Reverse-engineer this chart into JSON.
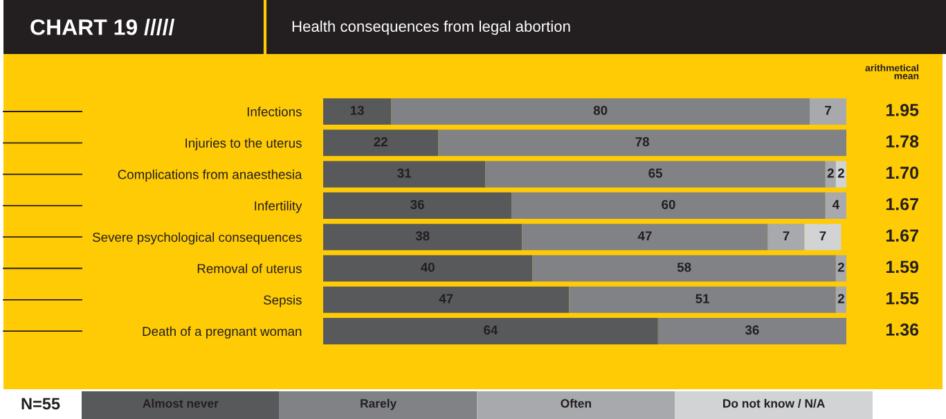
{
  "chart_data": {
    "type": "bar",
    "orientation": "horizontal",
    "stacked": true,
    "title": "CHART 19 /////",
    "subtitle": "Health consequences from legal abortion",
    "categories": [
      "Infections",
      "Injuries to the uterus",
      "Complications from anaesthesia",
      "Infertility",
      "Severe psychological consequences",
      "Removal of uterus",
      "Sepsis",
      "Death of a pregnant woman"
    ],
    "series": [
      {
        "name": "Almost never",
        "color": "#58595b",
        "values": [
          13,
          22,
          31,
          36,
          38,
          40,
          47,
          64
        ]
      },
      {
        "name": "Rarely",
        "color": "#808285",
        "values": [
          80,
          78,
          65,
          60,
          47,
          58,
          51,
          36
        ]
      },
      {
        "name": "Often",
        "color": "#a7a9ac",
        "values": [
          7,
          null,
          2,
          4,
          7,
          2,
          2,
          null
        ]
      },
      {
        "name": "Do not know / N/A",
        "color": "#d1d3d4",
        "values": [
          null,
          null,
          2,
          null,
          7,
          null,
          null,
          null
        ]
      }
    ],
    "xlim": [
      0,
      100
    ],
    "data_labels": true,
    "legend": "bottom",
    "tick_labels": "y",
    "annotations": [
      "arithmetical\nmean",
      "N=55",
      "1.95",
      "1.78",
      "1.70",
      "1.67",
      "1.67",
      "1.59",
      "1.55",
      "1.36"
    ]
  }
}
